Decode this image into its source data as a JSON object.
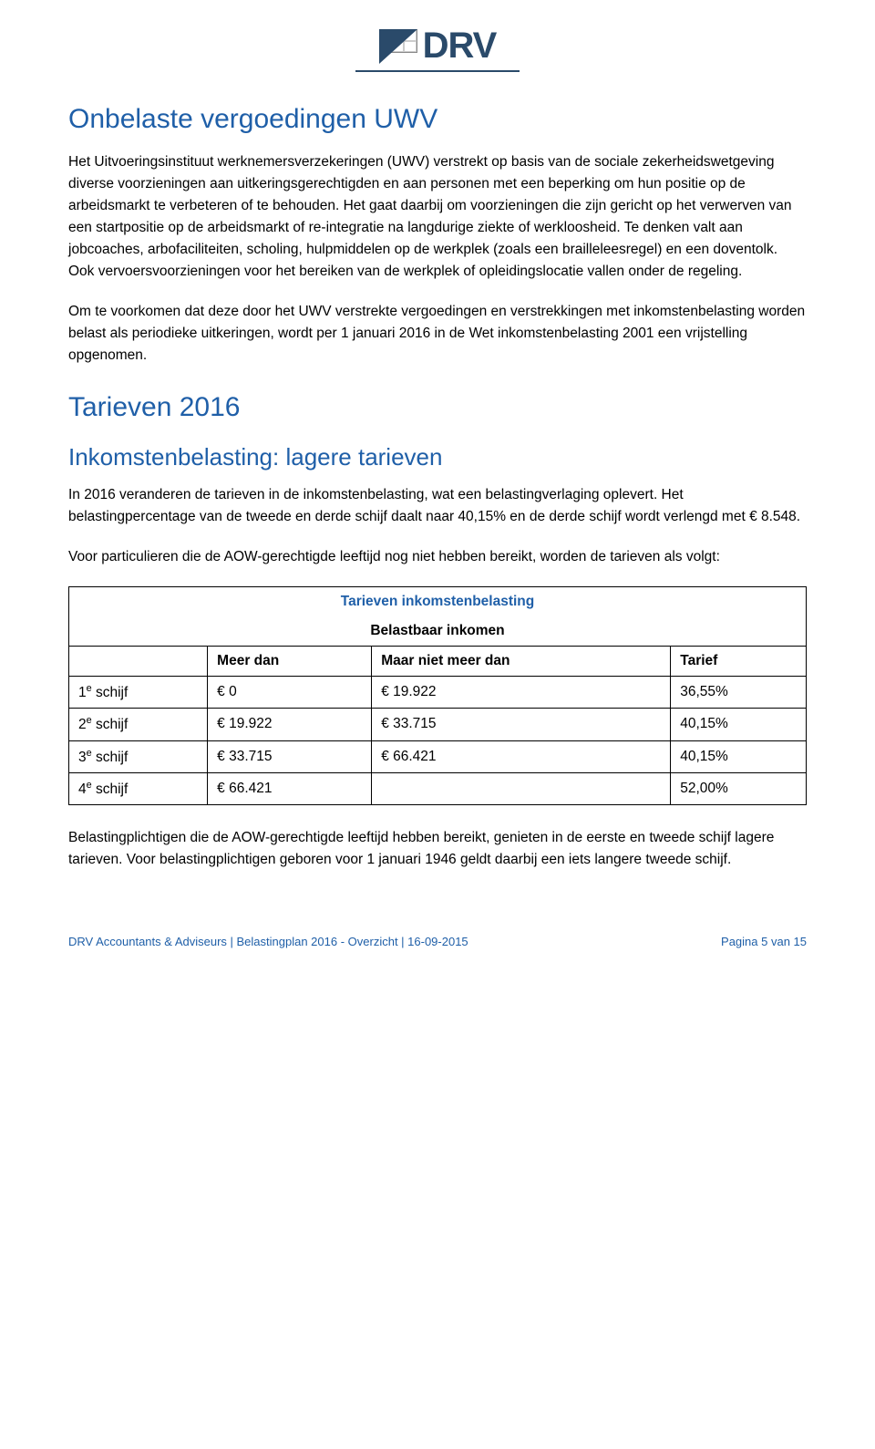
{
  "logo": {
    "text": "DRV"
  },
  "h1_1": "Onbelaste vergoedingen UWV",
  "p1": "Het Uitvoeringsinstituut werknemersverzekeringen (UWV) verstrekt op basis van de sociale zekerheidswetgeving diverse voorzieningen aan uitkeringsgerechtigden en aan personen met een beperking om hun positie op de arbeidsmarkt te verbeteren of te behouden. Het gaat daarbij om voorzieningen die zijn gericht op het verwerven van een startpositie op de arbeidsmarkt of re-integratie na langdurige ziekte of werkloosheid. Te denken valt aan jobcoaches, arbofaciliteiten, scholing, hulpmiddelen op de werkplek (zoals een brailleleesregel) en een doventolk. Ook vervoersvoorzieningen voor het bereiken van de werkplek of opleidingslocatie vallen onder de regeling.",
  "p2": "Om te voorkomen dat deze door het UWV verstrekte vergoedingen en verstrekkingen met inkomstenbelasting worden belast als periodieke uitkeringen, wordt per 1 januari 2016 in de Wet inkomstenbelasting 2001 een vrijstelling opgenomen.",
  "h1_2": "Tarieven 2016",
  "h2_1": "Inkomstenbelasting: lagere tarieven",
  "p3": "In 2016 veranderen de tarieven in de inkomstenbelasting, wat een belastingverlaging oplevert. Het belastingpercentage van de tweede en derde schijf daalt naar 40,15% en de derde schijf wordt verlengd met € 8.548.",
  "p4": "Voor particulieren die de AOW-gerechtigde leeftijd nog niet hebben bereikt, worden de tarieven als volgt:",
  "table": {
    "title": "Tarieven inkomstenbelasting",
    "subtitle": "Belastbaar inkomen",
    "head": [
      "",
      "Meer dan",
      "Maar niet meer dan",
      "Tarief"
    ],
    "rows": [
      {
        "label": "1",
        "sup": "e",
        "suffix": " schijf",
        "c1": "€ 0",
        "c2": "€ 19.922",
        "c3": "36,55%"
      },
      {
        "label": "2",
        "sup": "e",
        "suffix": " schijf",
        "c1": "€ 19.922",
        "c2": "€ 33.715",
        "c3": "40,15%"
      },
      {
        "label": "3",
        "sup": "e",
        "suffix": " schijf",
        "c1": "€ 33.715",
        "c2": "€ 66.421",
        "c3": "40,15%"
      },
      {
        "label": "4",
        "sup": "e",
        "suffix": " schijf",
        "c1": "€ 66.421",
        "c2": "",
        "c3": "52,00%"
      }
    ]
  },
  "p5": "Belastingplichtigen die de AOW-gerechtigde leeftijd hebben bereikt, genieten in de eerste en tweede schijf lagere tarieven. Voor belastingplichtigen geboren voor 1 januari 1946 geldt daarbij een iets langere tweede schijf.",
  "footer": {
    "left": "DRV Accountants & Adviseurs | Belastingplan 2016 - Overzicht | 16-09-2015",
    "right": "Pagina 5 van 15"
  }
}
